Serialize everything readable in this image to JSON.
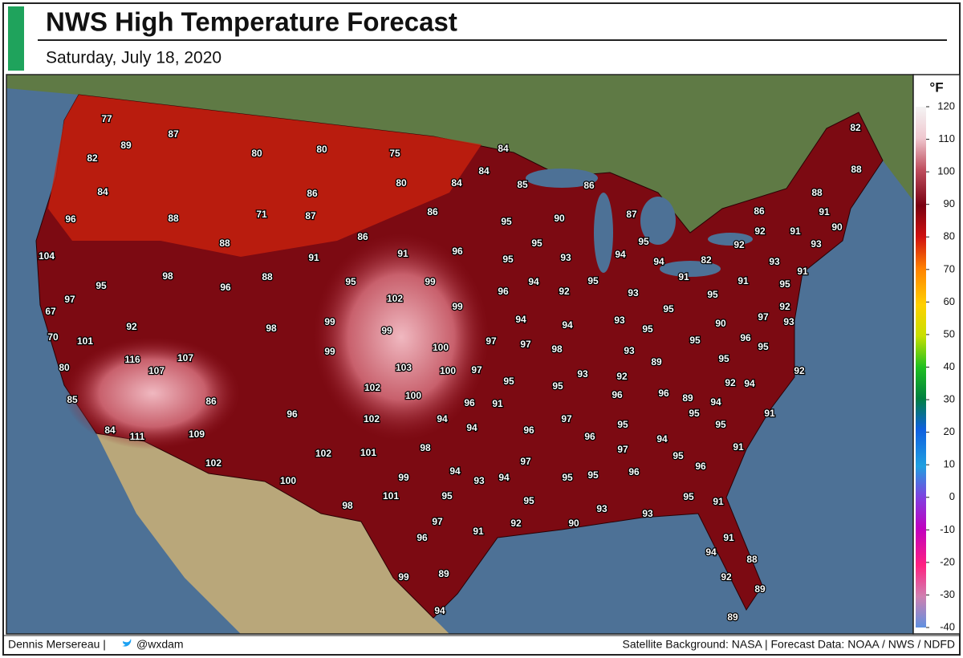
{
  "header": {
    "title": "NWS High Temperature Forecast",
    "subtitle": "Saturday, July 18, 2020"
  },
  "legend": {
    "unit": "°F",
    "ticks": [
      120,
      110,
      100,
      90,
      80,
      70,
      60,
      50,
      40,
      30,
      20,
      10,
      0,
      -10,
      -20,
      -30,
      -40
    ]
  },
  "forecast_labels": [
    77,
    87,
    89,
    82,
    80,
    80,
    75,
    84,
    84,
    82,
    88,
    84,
    80,
    84,
    85,
    86,
    88,
    96,
    88,
    71,
    86,
    87,
    86,
    95,
    90,
    87,
    86,
    91,
    92,
    91,
    90,
    88,
    86,
    91,
    91,
    96,
    95,
    95,
    92,
    93,
    104,
    95,
    93,
    94,
    94,
    82,
    93,
    91,
    98,
    88,
    95,
    99,
    95,
    91,
    91,
    95,
    96,
    96,
    94,
    92,
    93,
    95,
    95,
    97,
    102,
    99,
    92,
    67,
    95,
    92,
    98,
    99,
    99,
    94,
    94,
    93,
    95,
    90,
    97,
    93,
    70,
    101,
    97,
    97,
    98,
    96,
    95,
    99,
    100,
    95,
    93,
    89,
    95,
    116,
    107,
    80,
    107,
    103,
    100,
    97,
    93,
    92,
    92,
    92,
    94,
    102,
    95,
    95,
    85,
    86,
    100,
    96,
    96,
    89,
    94,
    96,
    91,
    96,
    102,
    94,
    97,
    95,
    95,
    91,
    84,
    111,
    109,
    94,
    96,
    95,
    96,
    94,
    91,
    98,
    102,
    101,
    97,
    95,
    96,
    102,
    97,
    94,
    94,
    93,
    96,
    95,
    95,
    99,
    100,
    95,
    101,
    95,
    95,
    91,
    98,
    93,
    93,
    97,
    92,
    90,
    91,
    96,
    91,
    94,
    88,
    89,
    99,
    92,
    89,
    94,
    89
  ],
  "footer": {
    "credit": "Dennis Mersereau |",
    "handle": "@wxdam",
    "sources": "Satellite Background: NASA | Forecast Data: NOAA / NWS / NDFD"
  }
}
